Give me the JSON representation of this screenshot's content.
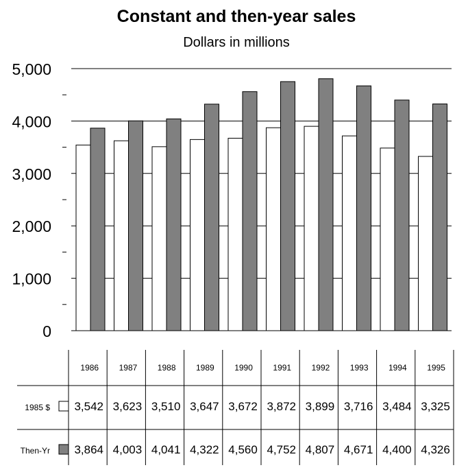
{
  "chart_data": {
    "type": "bar",
    "title": "Constant and then-year sales",
    "subtitle": "Dollars in millions",
    "categories": [
      "1986",
      "1987",
      "1988",
      "1989",
      "1990",
      "1991",
      "1992",
      "1993",
      "1994",
      "1995"
    ],
    "series": [
      {
        "name": "1985 $",
        "values": [
          3542,
          3623,
          3510,
          3647,
          3672,
          3872,
          3899,
          3716,
          3484,
          3325
        ],
        "labels": [
          "3,542",
          "3,623",
          "3,510",
          "3,647",
          "3,672",
          "3,872",
          "3,899",
          "3,716",
          "3,484",
          "3,325"
        ],
        "color": "#ffffff"
      },
      {
        "name": "Then-Yr",
        "values": [
          3864,
          4003,
          4041,
          4322,
          4560,
          4752,
          4807,
          4671,
          4400,
          4326
        ],
        "labels": [
          "3,864",
          "4,003",
          "4,041",
          "4,322",
          "4,560",
          "4,752",
          "4,807",
          "4,671",
          "4,400",
          "4,326"
        ],
        "color": "#808080"
      }
    ],
    "ylim": [
      0,
      5000
    ],
    "yticks": [
      0,
      1000,
      2000,
      3000,
      4000,
      5000
    ],
    "ytick_labels": [
      "0",
      "1,000",
      "2,000",
      "3,000",
      "4,000",
      "5,000"
    ],
    "grid": true,
    "legend": "data-table"
  }
}
